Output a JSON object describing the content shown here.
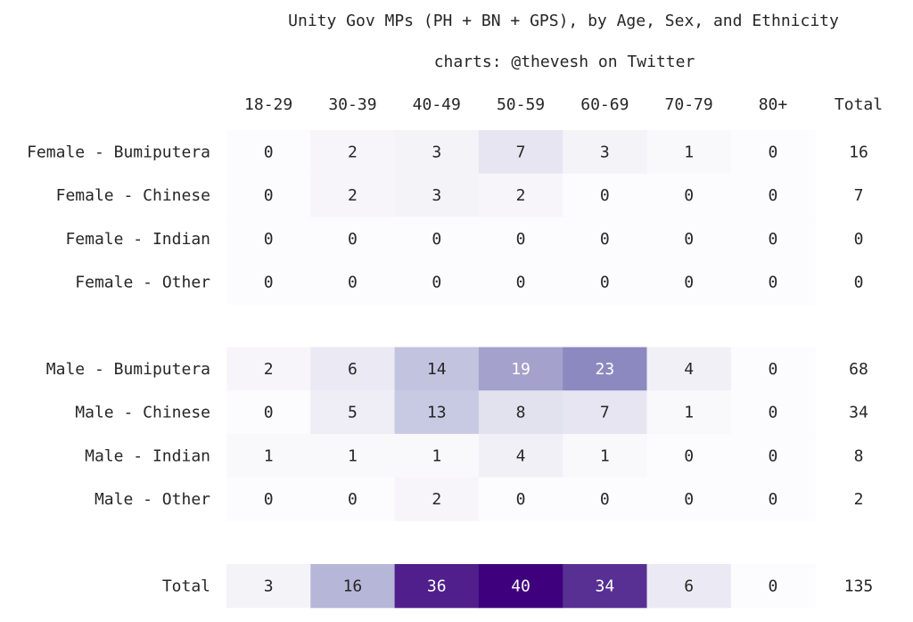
{
  "chart_data": {
    "type": "heatmap",
    "title": "Unity Gov MPs (PH + BN + GPS), by Age, Sex, and Ethnicity",
    "subtitle": "charts: @thevesh on Twitter",
    "columns": [
      "18-29",
      "30-39",
      "40-49",
      "50-59",
      "60-69",
      "70-79",
      "80+"
    ],
    "total_column_label": "Total",
    "colormap": "Purples",
    "groups": [
      {
        "rows": [
          {
            "label": "Female - Bumiputera",
            "values": [
              0,
              2,
              3,
              7,
              3,
              1,
              0
            ],
            "total": 16
          },
          {
            "label": "Female - Chinese",
            "values": [
              0,
              2,
              3,
              2,
              0,
              0,
              0
            ],
            "total": 7
          },
          {
            "label": "Female - Indian",
            "values": [
              0,
              0,
              0,
              0,
              0,
              0,
              0
            ],
            "total": 0
          },
          {
            "label": "Female - Other",
            "values": [
              0,
              0,
              0,
              0,
              0,
              0,
              0
            ],
            "total": 0
          }
        ]
      },
      {
        "rows": [
          {
            "label": "Male - Bumiputera",
            "values": [
              2,
              6,
              14,
              19,
              23,
              4,
              0
            ],
            "total": 68
          },
          {
            "label": "Male - Chinese",
            "values": [
              0,
              5,
              13,
              8,
              7,
              1,
              0
            ],
            "total": 34
          },
          {
            "label": "Male - Indian",
            "values": [
              1,
              1,
              1,
              4,
              1,
              0,
              0
            ],
            "total": 8
          },
          {
            "label": "Male - Other",
            "values": [
              0,
              0,
              2,
              0,
              0,
              0,
              0
            ],
            "total": 2
          }
        ]
      }
    ],
    "total_row": {
      "label": "Total",
      "values": [
        3,
        16,
        36,
        40,
        34,
        6,
        0
      ],
      "total": 135
    },
    "colors": {
      "text_dark": "#262626",
      "text_light": "#ffffff"
    }
  }
}
